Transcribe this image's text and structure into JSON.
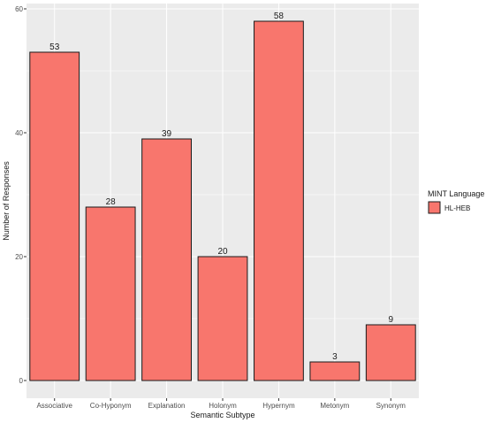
{
  "chart_data": {
    "type": "bar",
    "categories": [
      "Associative",
      "Co-Hyponym",
      "Explanation",
      "Holonym",
      "Hypernym",
      "Metonym",
      "Synonym"
    ],
    "series": [
      {
        "name": "HL-HEB",
        "values": [
          53,
          28,
          39,
          20,
          58,
          3,
          9
        ]
      }
    ],
    "data_labels": [
      "53",
      "28",
      "39",
      "20",
      "58",
      "3",
      "9"
    ],
    "xlabel": "Semantic Subtype",
    "ylabel": "Number of Responses",
    "ylim": [
      0,
      60
    ],
    "yticks": [
      0,
      20,
      40,
      60
    ],
    "grid": true,
    "legend": {
      "title": "MINT Language",
      "placement": "right",
      "entries": [
        "HL-HEB"
      ]
    },
    "colors": {
      "bar_fill": "#f8766d",
      "bar_stroke": "#1a1a1a",
      "panel_bg": "#ebebeb",
      "grid": "#ffffff"
    }
  }
}
